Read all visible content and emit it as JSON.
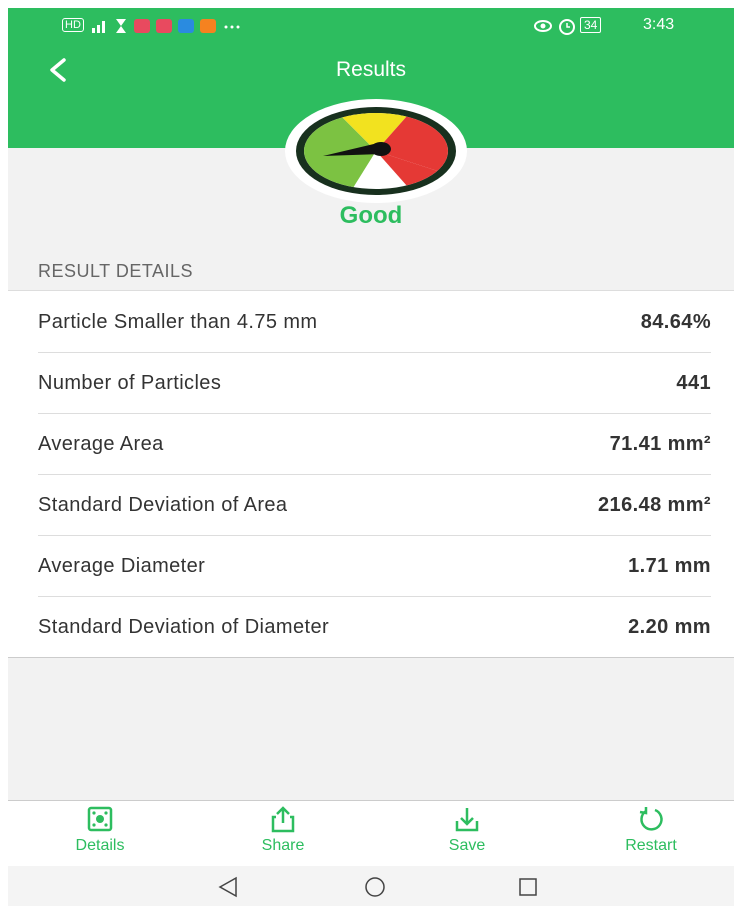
{
  "status_bar": {
    "network": "HD",
    "battery": "34",
    "time": "3:43"
  },
  "header": {
    "title": "Results"
  },
  "result": {
    "status": "Good"
  },
  "section_title": "RESULT DETAILS",
  "details": [
    {
      "label": "Particle Smaller than 4.75 mm",
      "value": "84.64%"
    },
    {
      "label": "Number of Particles",
      "value": "441"
    },
    {
      "label": "Average Area",
      "value": "71.41 mm²"
    },
    {
      "label": "Standard Deviation of Area",
      "value": "216.48 mm²"
    },
    {
      "label": "Average Diameter",
      "value": "1.71 mm"
    },
    {
      "label": "Standard Deviation of Diameter",
      "value": "2.20 mm"
    }
  ],
  "bottom_nav": [
    "Details",
    "Share",
    "Save",
    "Restart"
  ]
}
